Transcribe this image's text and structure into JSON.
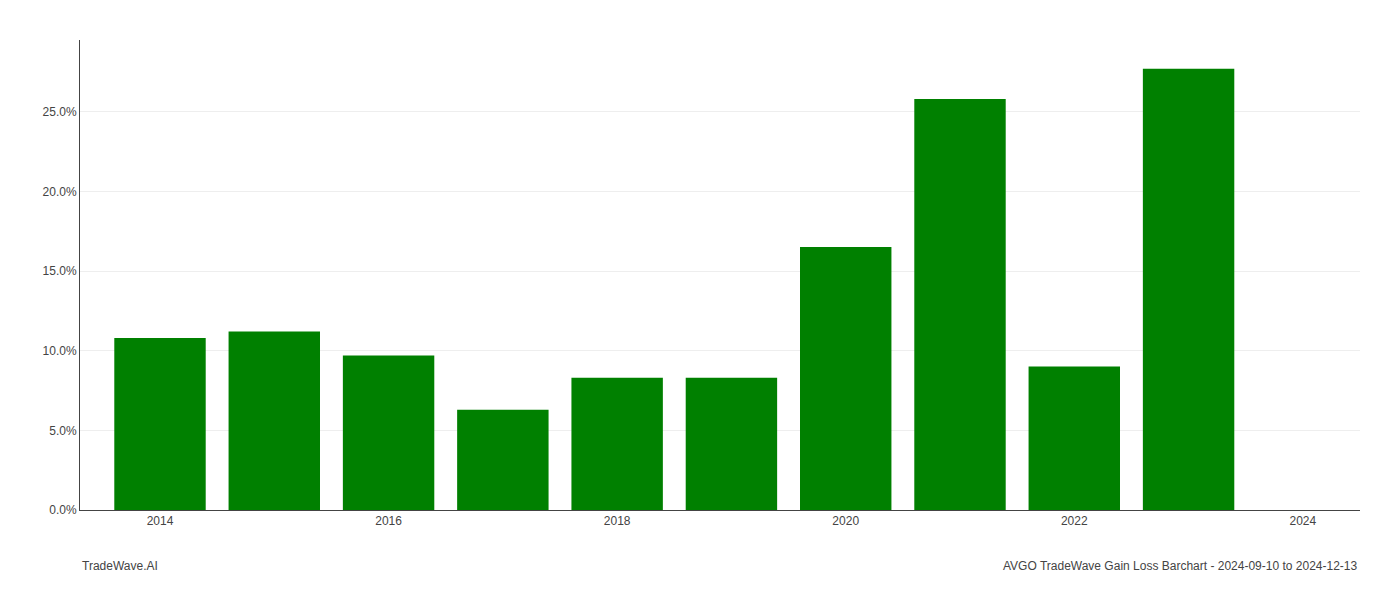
{
  "chart_data": {
    "type": "bar",
    "x": [
      2014,
      2015,
      2016,
      2017,
      2018,
      2019,
      2020,
      2021,
      2022,
      2023
    ],
    "values": [
      0.108,
      0.112,
      0.097,
      0.063,
      0.083,
      0.083,
      0.165,
      0.258,
      0.09,
      0.277
    ],
    "color": "#008000",
    "xlim": [
      2013.3,
      2024.5
    ],
    "xticks": [
      2014,
      2016,
      2018,
      2020,
      2022,
      2024
    ],
    "ylim": [
      0,
      0.295
    ],
    "yticks": [
      {
        "value": 0.0,
        "label": "0.0%"
      },
      {
        "value": 0.05,
        "label": "5.0%"
      },
      {
        "value": 0.1,
        "label": "10.0%"
      },
      {
        "value": 0.15,
        "label": "15.0%"
      },
      {
        "value": 0.2,
        "label": "20.0%"
      },
      {
        "value": 0.25,
        "label": "25.0%"
      }
    ],
    "grid": true,
    "annotations": [
      "TradeWave.AI",
      "AVGO TradeWave Gain Loss Barchart - 2024-09-10 to 2024-12-13"
    ]
  }
}
